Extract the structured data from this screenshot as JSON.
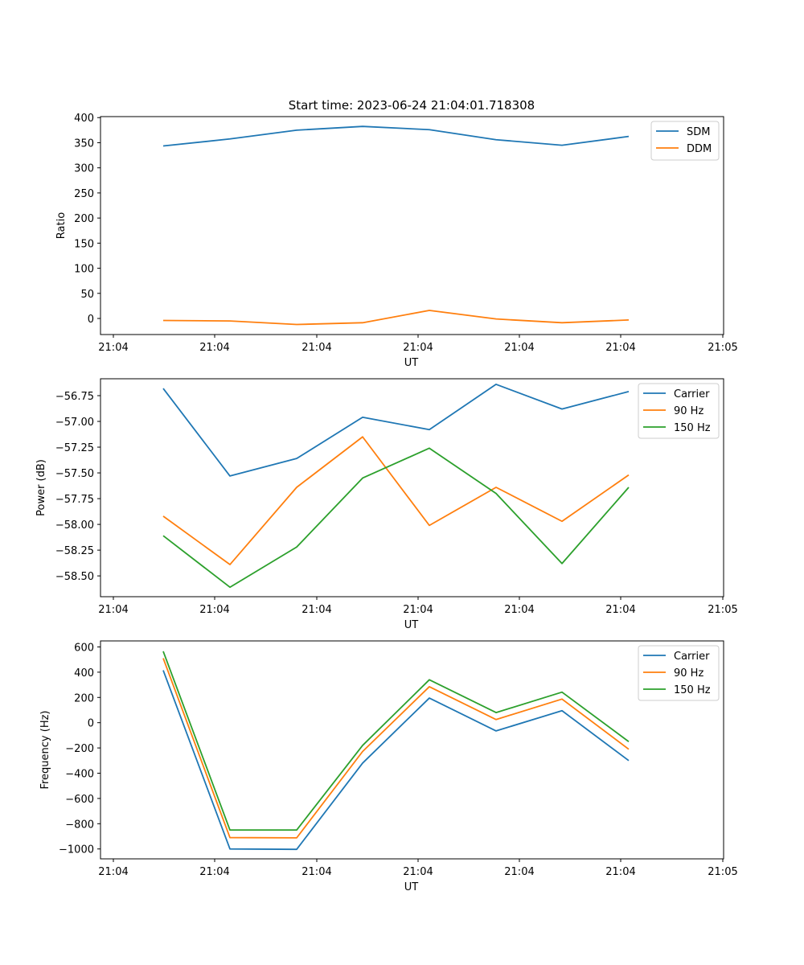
{
  "figure": {
    "title": "Start time: 2023-06-24 21:04:01.718308"
  },
  "chart_data": [
    {
      "type": "line",
      "xlabel": "UT",
      "ylabel": "Ratio",
      "xticks": [
        "21:04",
        "21:04",
        "21:04",
        "21:04",
        "21:04",
        "21:04",
        "21:04",
        "21:05"
      ],
      "yticks": [
        0,
        50,
        100,
        150,
        200,
        250,
        300,
        350,
        400
      ],
      "ylim": [
        -32,
        402
      ],
      "legend_position": "top-right",
      "series": [
        {
          "name": "SDM",
          "color": "#1f77b4",
          "values": [
            343.5,
            357.5,
            375,
            382.5,
            376,
            356,
            345,
            362.5
          ]
        },
        {
          "name": "DDM",
          "color": "#ff7f0e",
          "values": [
            -4,
            -5,
            -12,
            -8.5,
            16,
            -1,
            -8.5,
            -3
          ]
        }
      ]
    },
    {
      "type": "line",
      "xlabel": "UT",
      "ylabel": "Power (dB)",
      "xticks": [
        "21:04",
        "21:04",
        "21:04",
        "21:04",
        "21:04",
        "21:04",
        "21:04",
        "21:05"
      ],
      "yticks": [
        -58.5,
        -58.25,
        -58.0,
        -57.75,
        -57.5,
        -57.25,
        -57.0,
        -56.75
      ],
      "ytick_labels": [
        "−58.50",
        "−58.25",
        "−58.00",
        "−57.75",
        "−57.50",
        "−57.25",
        "−57.00",
        "−56.75"
      ],
      "ylim": [
        -58.702,
        -56.586
      ],
      "legend_position": "top-right",
      "series": [
        {
          "name": "Carrier",
          "color": "#1f77b4",
          "values": [
            -56.68,
            -57.53,
            -57.36,
            -56.96,
            -57.08,
            -56.64,
            -56.88,
            -56.71
          ]
        },
        {
          "name": "90 Hz",
          "color": "#ff7f0e",
          "values": [
            -57.92,
            -58.39,
            -57.64,
            -57.15,
            -58.01,
            -57.64,
            -57.97,
            -57.52
          ]
        },
        {
          "name": "150 Hz",
          "color": "#2ca02c",
          "values": [
            -58.11,
            -58.61,
            -58.22,
            -57.55,
            -57.26,
            -57.7,
            -58.38,
            -57.64
          ]
        }
      ]
    },
    {
      "type": "line",
      "xlabel": "UT",
      "ylabel": "Frequency (Hz)",
      "xticks": [
        "21:04",
        "21:04",
        "21:04",
        "21:04",
        "21:04",
        "21:04",
        "21:04",
        "21:05"
      ],
      "yticks": [
        -1000,
        -800,
        -600,
        -400,
        -200,
        0,
        200,
        400,
        600
      ],
      "ytick_labels": [
        "−1000",
        "−800",
        "−600",
        "−400",
        "−200",
        "0",
        "200",
        "400",
        "600"
      ],
      "ylim": [
        -1078.3,
        647.6
      ],
      "legend_position": "top-right",
      "series": [
        {
          "name": "Carrier",
          "color": "#1f77b4",
          "values": [
            415,
            -1000,
            -1003,
            -320,
            195,
            -65,
            95,
            -300
          ]
        },
        {
          "name": "90 Hz",
          "color": "#ff7f0e",
          "values": [
            510,
            -910,
            -912,
            -228,
            285,
            25,
            187,
            -210
          ]
        },
        {
          "name": "150 Hz",
          "color": "#2ca02c",
          "values": [
            565,
            -850,
            -850,
            -180,
            340,
            80,
            242,
            -150
          ]
        }
      ]
    }
  ]
}
